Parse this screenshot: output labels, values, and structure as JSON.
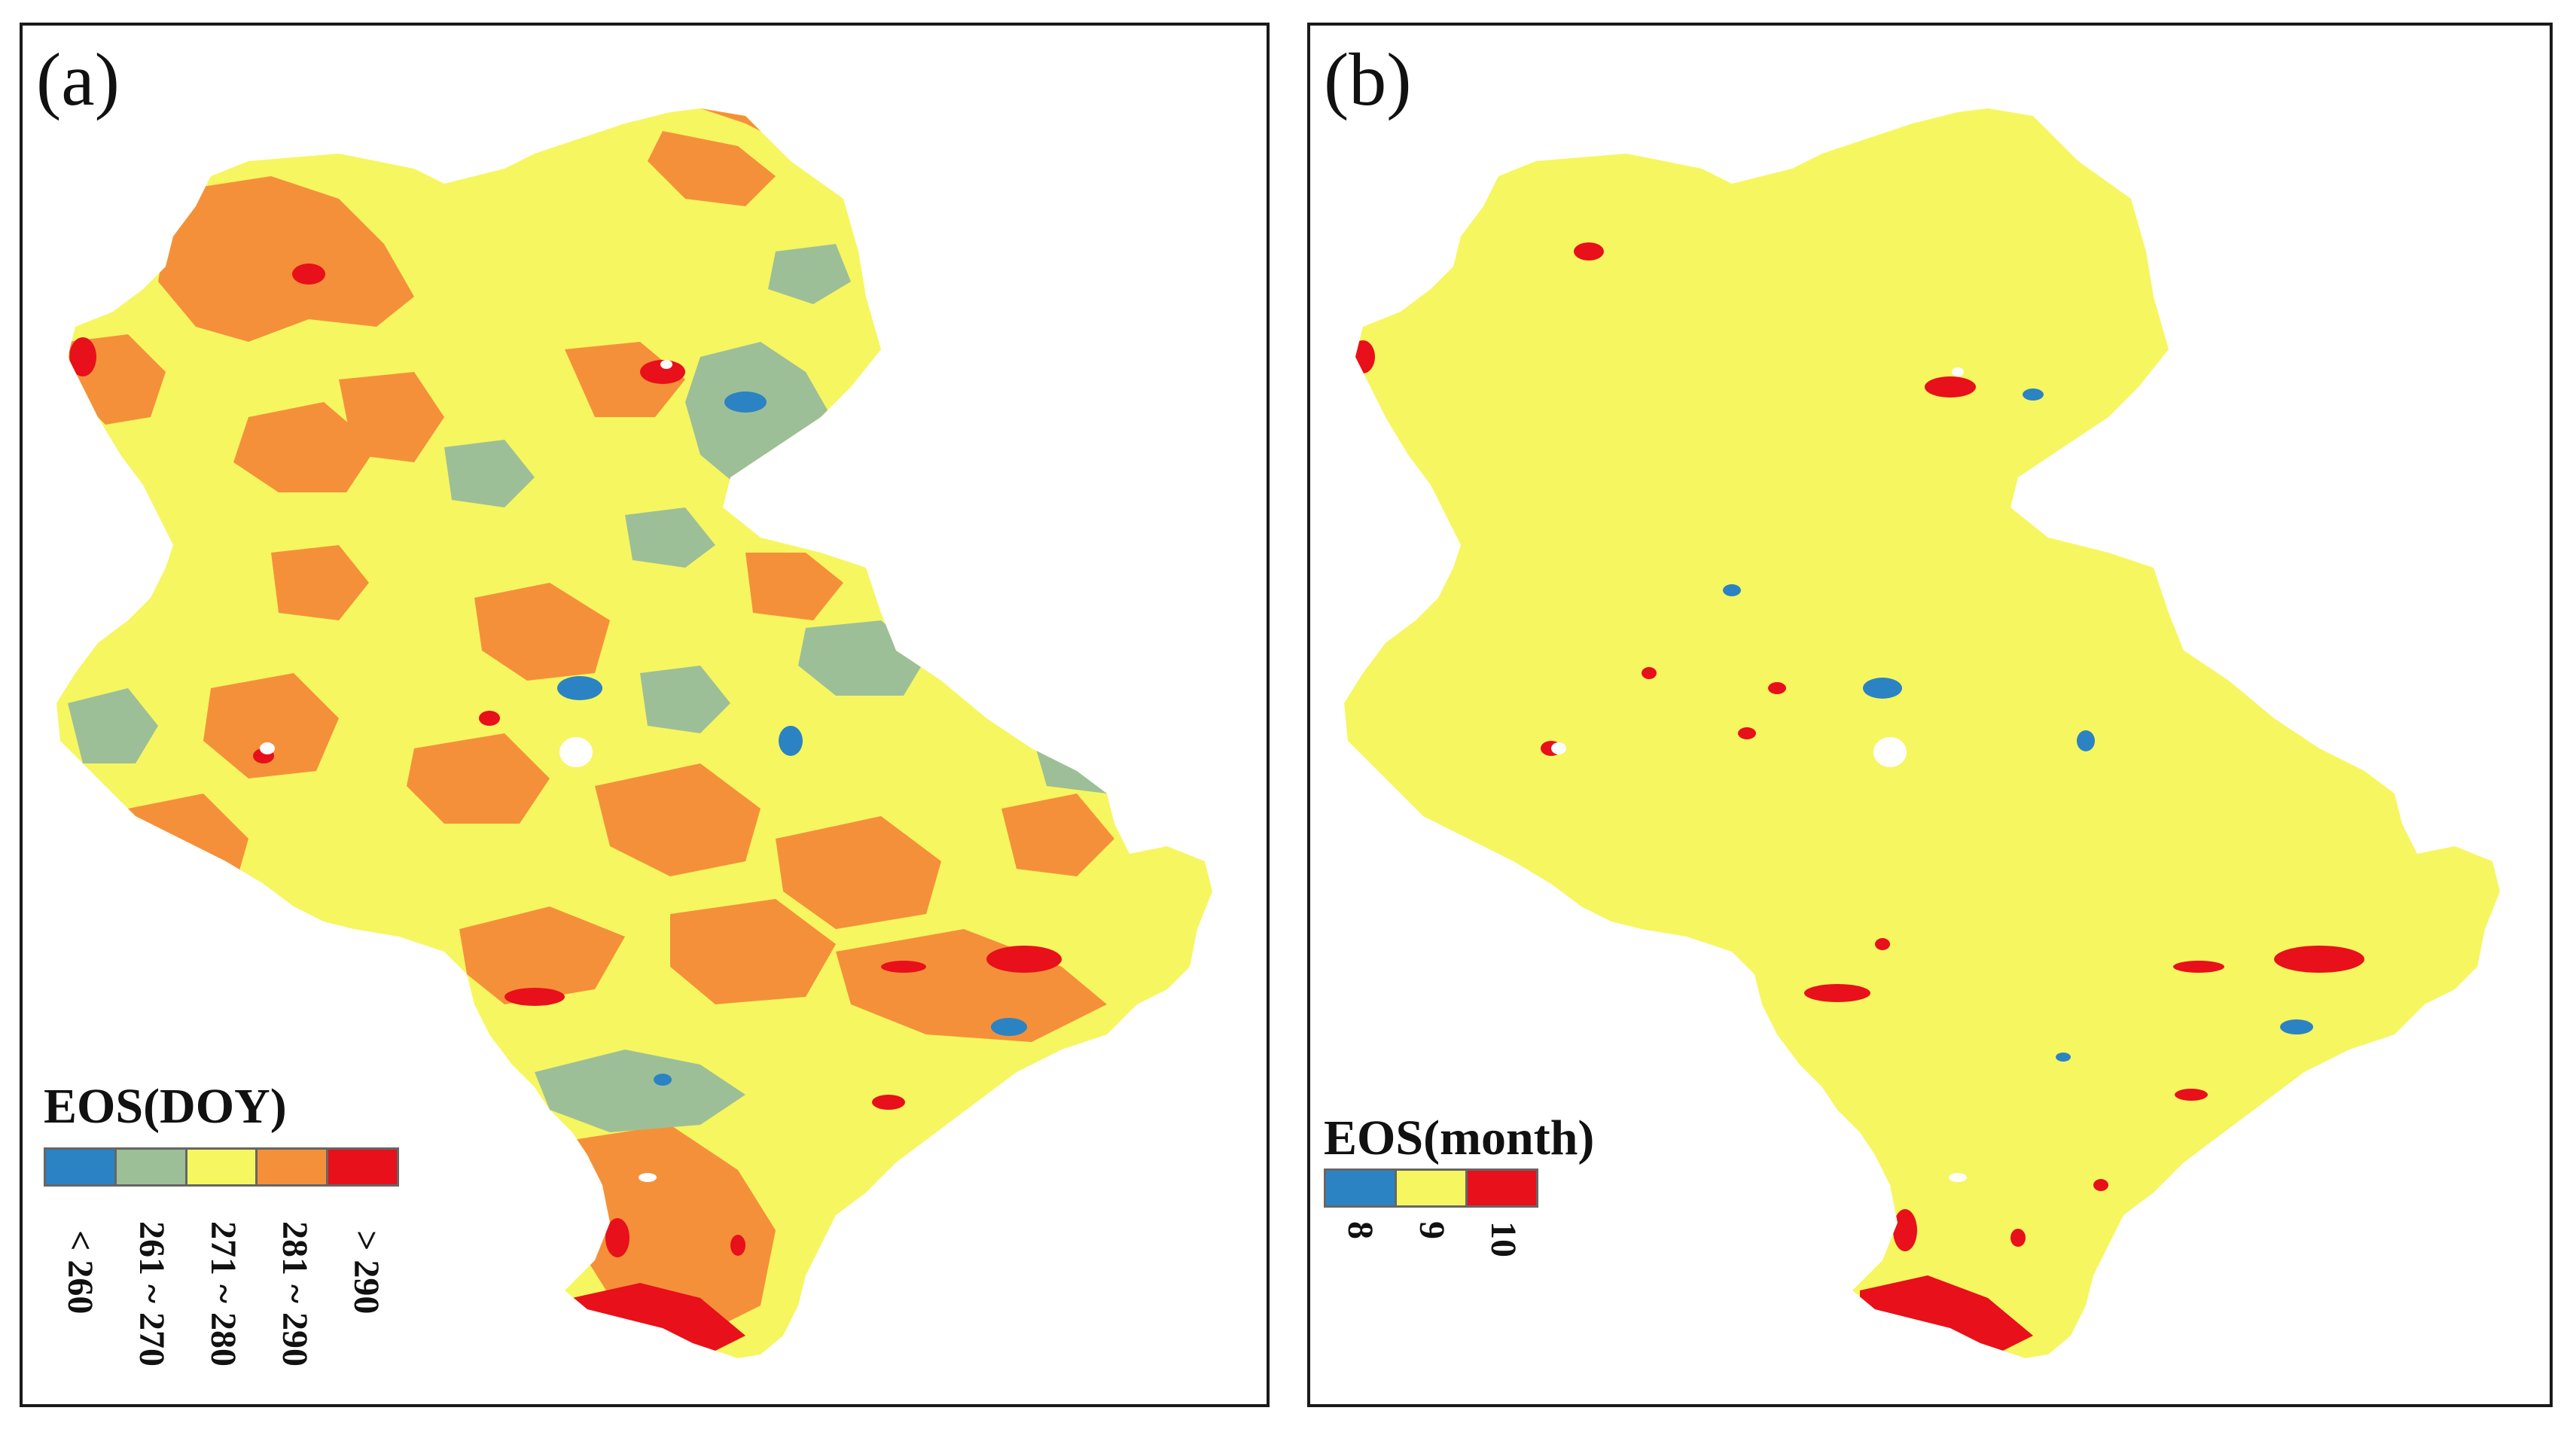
{
  "panel_a": {
    "label": "(a)",
    "legend": {
      "title": "EOS(DOY)",
      "classes": [
        {
          "label": "< 260",
          "color": "#2b83c4"
        },
        {
          "label": "261 ~ 270",
          "color": "#9dbf98"
        },
        {
          "label": "271 ~ 280",
          "color": "#f6f660"
        },
        {
          "label": "281 ~ 290",
          "color": "#f5903a"
        },
        {
          "label": "> 290",
          "color": "#e8101a"
        }
      ]
    }
  },
  "panel_b": {
    "label": "(b)",
    "legend": {
      "title": "EOS(month)",
      "classes": [
        {
          "label": "8",
          "color": "#2b83c4"
        },
        {
          "label": "9",
          "color": "#f6f660"
        },
        {
          "label": "10",
          "color": "#e8101a"
        }
      ]
    }
  }
}
